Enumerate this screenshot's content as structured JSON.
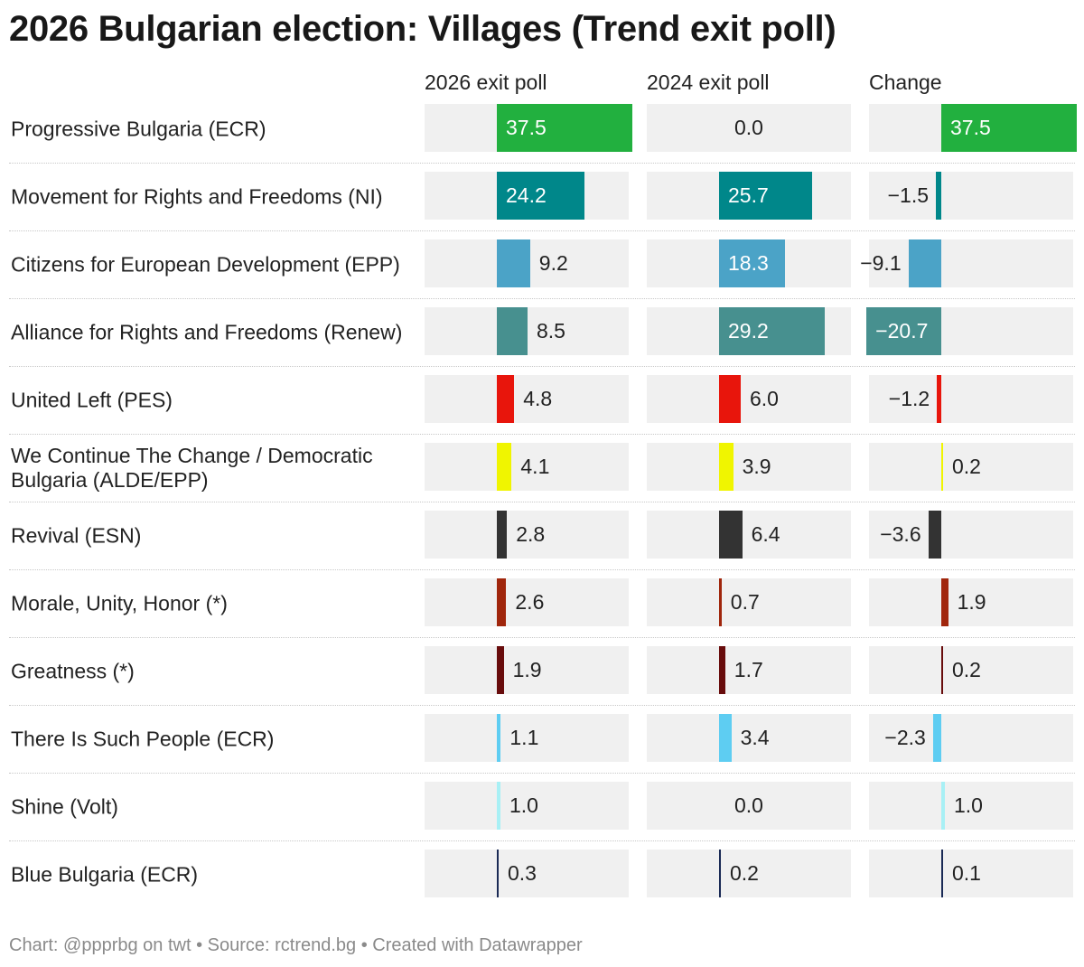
{
  "title": "2026 Bulgarian election: Villages (Trend exit poll)",
  "columns": [
    "2026 exit poll",
    "2024 exit poll",
    "Change"
  ],
  "footer": "Chart: @ppprbg on twt • Source: rctrend.bg • Created with Datawrapper",
  "chart_data": {
    "type": "table",
    "title": "2026 Bulgarian election: Villages (Trend exit poll)",
    "columns": [
      "2026 exit poll",
      "2024 exit poll",
      "Change"
    ],
    "rows": [
      {
        "party": "Progressive Bulgaria (ECR)",
        "color": "#22b03f",
        "values": [
          37.5,
          0.0,
          37.5
        ],
        "display": [
          "37.5",
          "0.0",
          "37.5"
        ]
      },
      {
        "party": "Movement for Rights and Freedoms (NI)",
        "color": "#00878a",
        "values": [
          24.2,
          25.7,
          -1.5
        ],
        "display": [
          "24.2",
          "25.7",
          "−1.5"
        ]
      },
      {
        "party": "Citizens for European Development (EPP)",
        "color": "#4ba3c7",
        "values": [
          9.2,
          18.3,
          -9.1
        ],
        "display": [
          "9.2",
          "18.3",
          "−9.1"
        ]
      },
      {
        "party": "Alliance for Rights and Freedoms (Renew)",
        "color": "#47908f",
        "values": [
          8.5,
          29.2,
          -20.7
        ],
        "display": [
          "8.5",
          "29.2",
          "−20.7"
        ]
      },
      {
        "party": "United Left (PES)",
        "color": "#e8150c",
        "values": [
          4.8,
          6.0,
          -1.2
        ],
        "display": [
          "4.8",
          "6.0",
          "−1.2"
        ]
      },
      {
        "party": "We Continue The Change / Democratic Bulgaria (ALDE/EPP)",
        "color": "#f0f500",
        "values": [
          4.1,
          3.9,
          0.2
        ],
        "display": [
          "4.1",
          "3.9",
          "0.2"
        ]
      },
      {
        "party": "Revival (ESN)",
        "color": "#333333",
        "values": [
          2.8,
          6.4,
          -3.6
        ],
        "display": [
          "2.8",
          "6.4",
          "−3.6"
        ]
      },
      {
        "party": "Morale, Unity, Honor (*)",
        "color": "#a0260c",
        "values": [
          2.6,
          0.7,
          1.9
        ],
        "display": [
          "2.6",
          "0.7",
          "1.9"
        ]
      },
      {
        "party": "Greatness (*)",
        "color": "#680c0c",
        "values": [
          1.9,
          1.7,
          0.2
        ],
        "display": [
          "1.9",
          "1.7",
          "0.2"
        ]
      },
      {
        "party": "There Is Such People (ECR)",
        "color": "#5ecdf2",
        "values": [
          1.1,
          3.4,
          -2.3
        ],
        "display": [
          "1.1",
          "3.4",
          "−2.3"
        ]
      },
      {
        "party": "Shine (Volt)",
        "color": "#a8f0f5",
        "values": [
          1.0,
          0.0,
          1.0
        ],
        "display": [
          "1.0",
          "0.0",
          "1.0"
        ]
      },
      {
        "party": "Blue Bulgaria (ECR)",
        "color": "#1a2a55",
        "values": [
          0.3,
          0.2,
          0.1
        ],
        "display": [
          "0.3",
          "0.2",
          "0.1"
        ]
      }
    ]
  }
}
